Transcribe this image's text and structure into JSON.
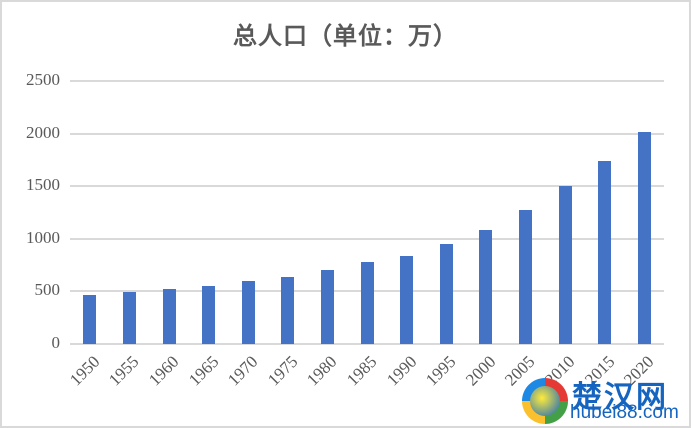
{
  "chart_data": {
    "type": "bar",
    "title": "总人口（单位：万）",
    "xlabel": "",
    "ylabel": "",
    "categories": [
      "1950",
      "1955",
      "1960",
      "1965",
      "1970",
      "1975",
      "1980",
      "1985",
      "1990",
      "1995",
      "2000",
      "2005",
      "2010",
      "2015",
      "2020"
    ],
    "series": [
      {
        "name": "总人口",
        "values": [
          465,
          495,
          525,
          555,
          595,
          640,
          705,
          780,
          840,
          955,
          1085,
          1275,
          1505,
          1740,
          2015
        ],
        "color": "#4472c4"
      }
    ],
    "ylim": [
      0,
      2500
    ],
    "yticks": [
      0,
      500,
      1000,
      1500,
      2000,
      2500
    ],
    "grid": true,
    "legend": "none"
  },
  "watermark": {
    "cn": "楚汉网",
    "en": "hubei88.com"
  }
}
